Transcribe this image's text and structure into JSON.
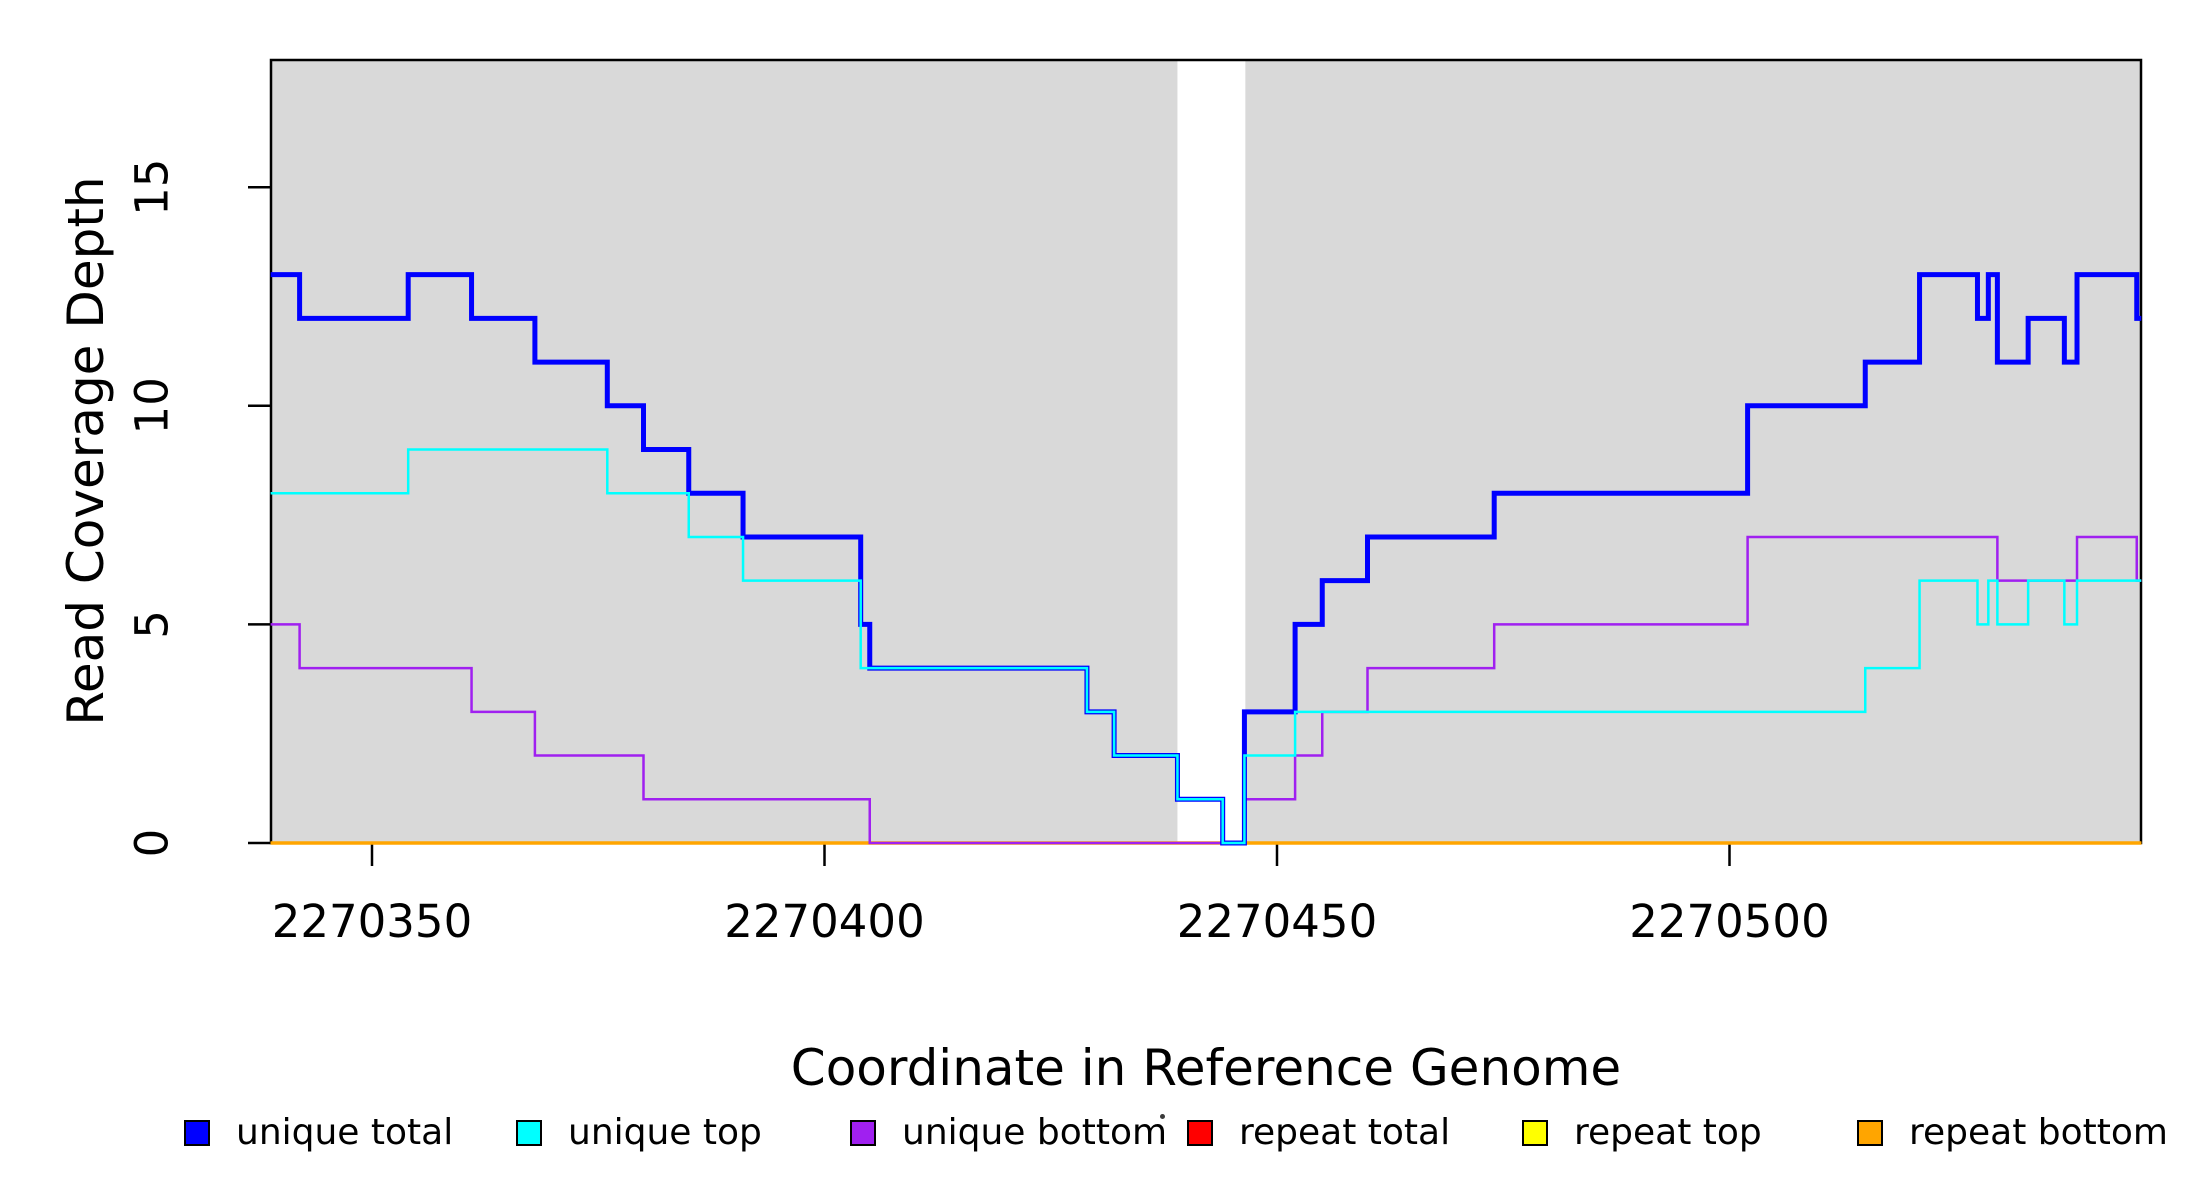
{
  "chart_data": {
    "type": "line",
    "subtype": "step-coverage-plot",
    "title": "",
    "xlabel": "Coordinate in Reference Genome",
    "ylabel": "Read Coverage Depth",
    "x_ticks": [
      2270350,
      2270400,
      2270450,
      2270500
    ],
    "y_ticks": [
      0,
      5,
      10,
      15
    ],
    "x_range": [
      2270338.8,
      2270545.5
    ],
    "y_range": [
      0,
      17.9
    ],
    "grid": false,
    "plot_background_color": "#d9d9d9",
    "masked_white_region": {
      "x_start": 2270439,
      "x_end": 2270446.5,
      "color": "#ffffff"
    },
    "legend_position": "bottom",
    "series": [
      {
        "name": "repeat total",
        "color": "#ff0000",
        "line_width": 2.5,
        "breaks": [
          2270338.8,
          2270545.5
        ],
        "values": [
          0
        ]
      },
      {
        "name": "repeat top",
        "color": "#ffff00",
        "line_width": 2.5,
        "breaks": [
          2270338.8,
          2270545.5
        ],
        "values": [
          0
        ]
      },
      {
        "name": "repeat bottom",
        "color": "#ffa500",
        "line_width": 3.5,
        "breaks": [
          2270338.8,
          2270545.5
        ],
        "values": [
          0
        ]
      },
      {
        "name": "unique bottom",
        "color": "#a020f0",
        "line_width": 2.5,
        "breaks": [
          2270338.8,
          2270342,
          2270361,
          2270368,
          2270380,
          2270405,
          2270446.4,
          2270452,
          2270455,
          2270460,
          2270474,
          2270502,
          2270529.6,
          2270538.4,
          2270545,
          2270545.5
        ],
        "values": [
          5,
          4,
          3,
          2,
          1,
          0,
          1,
          2,
          3,
          4,
          5,
          7,
          6,
          7,
          6
        ]
      },
      {
        "name": "unique total",
        "color": "#0000ff",
        "line_width": 5,
        "breaks": [
          2270338.8,
          2270342,
          2270354,
          2270361,
          2270368,
          2270376,
          2270380,
          2270385,
          2270391,
          2270404,
          2270405,
          2270429,
          2270432,
          2270439,
          2270444,
          2270446.4,
          2270452,
          2270455,
          2270460,
          2270474,
          2270502,
          2270515,
          2270521,
          2270527.4,
          2270528.6,
          2270529.6,
          2270533,
          2270537,
          2270538.4,
          2270545,
          2270545.5
        ],
        "values": [
          13,
          12,
          13,
          12,
          11,
          10,
          9,
          8,
          7,
          5,
          4,
          3,
          2,
          1,
          0,
          3,
          5,
          6,
          7,
          8,
          10,
          11,
          13,
          12,
          13,
          11,
          12,
          11,
          13,
          12
        ]
      },
      {
        "name": "unique top",
        "color": "#00ffff",
        "line_width": 2.5,
        "breaks": [
          2270338.8,
          2270354,
          2270376,
          2270385,
          2270391,
          2270404,
          2270429,
          2270432,
          2270439,
          2270444,
          2270446.4,
          2270452,
          2270515,
          2270521,
          2270527.4,
          2270528.6,
          2270529.6,
          2270533,
          2270537,
          2270538.4,
          2270545.5
        ],
        "values": [
          8,
          9,
          8,
          7,
          6,
          4,
          3,
          2,
          1,
          0,
          2,
          3,
          4,
          6,
          5,
          6,
          5,
          6,
          5,
          6
        ]
      }
    ],
    "legend": {
      "items": [
        {
          "label": "unique total",
          "color": "#0000ff"
        },
        {
          "label": "unique top",
          "color": "#00ffff"
        },
        {
          "label": "unique bottom",
          "color": "#a020f0"
        },
        {
          "label": "repeat total",
          "color": "#ff0000"
        },
        {
          "label": "repeat top",
          "color": "#ffff00"
        },
        {
          "label": "repeat bottom",
          "color": "#ffa500"
        }
      ]
    }
  },
  "axes": {
    "x_label": "Coordinate in Reference Genome",
    "y_label": "Read Coverage Depth",
    "x_tick_labels": [
      "2270350",
      "2270400",
      "2270450",
      "2270500"
    ],
    "y_tick_labels": [
      "0",
      "5",
      "10",
      "15"
    ]
  }
}
